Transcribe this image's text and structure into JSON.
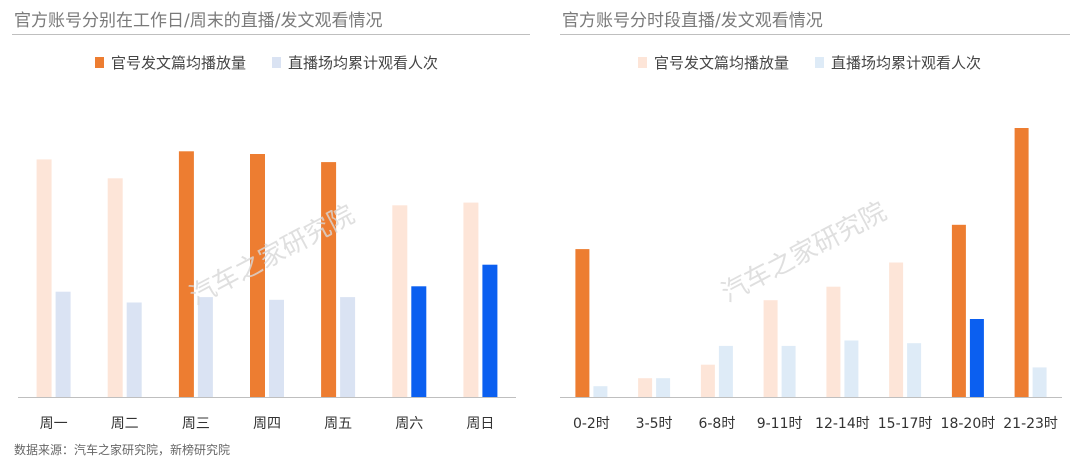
{
  "chart_data": [
    {
      "type": "bar",
      "title": "官方账号分别在工作日/周末的直播/发文观看情况",
      "categories": [
        "周一",
        "周二",
        "周三",
        "周四",
        "周五",
        "周六",
        "周日"
      ],
      "series": [
        {
          "name": "官号发文篇均播放量",
          "values": [
            88,
            81,
            91,
            90,
            87,
            71,
            72
          ],
          "colors": [
            "#fde5d8",
            "#fde5d8",
            "#ed7d31",
            "#ed7d31",
            "#ed7d31",
            "#fde5d8",
            "#fde5d8"
          ]
        },
        {
          "name": "直播场均累计观看人次",
          "values": [
            39,
            35,
            37,
            36,
            37,
            41,
            49
          ],
          "colors": [
            "#dae3f3",
            "#dae3f3",
            "#dae3f3",
            "#dae3f3",
            "#dae3f3",
            "#0b5ff0",
            "#0b5ff0"
          ]
        }
      ],
      "legend_colors": [
        "#ed7d31",
        "#dae3f3"
      ],
      "ylim": [
        0,
        100
      ]
    },
    {
      "type": "bar",
      "title": "官方账号分时段直播/发文观看情况",
      "categories": [
        "0-2时",
        "3-5时",
        "6-8时",
        "9-11时",
        "12-14时",
        "15-17时",
        "18-20时",
        "21-23时"
      ],
      "series": [
        {
          "name": "官号发文篇均播放量",
          "values": [
            55,
            7,
            12,
            36,
            41,
            50,
            64,
            100
          ],
          "colors": [
            "#ed7d31",
            "#fde5d8",
            "#fde5d8",
            "#fde5d8",
            "#fde5d8",
            "#fde5d8",
            "#ed7d31",
            "#ed7d31"
          ]
        },
        {
          "name": "直播场均累计观看人次",
          "values": [
            4,
            7,
            19,
            19,
            21,
            20,
            29,
            11
          ],
          "colors": [
            "#deebf7",
            "#deebf7",
            "#deebf7",
            "#deebf7",
            "#deebf7",
            "#deebf7",
            "#0b5ff0",
            "#deebf7"
          ]
        }
      ],
      "legend_colors": [
        "#fde5d8",
        "#deebf7"
      ],
      "ylim": [
        0,
        100
      ]
    }
  ],
  "watermark": "汽车之家研究院",
  "source": "数据来源：汽车之家研究院，新榜研究院"
}
